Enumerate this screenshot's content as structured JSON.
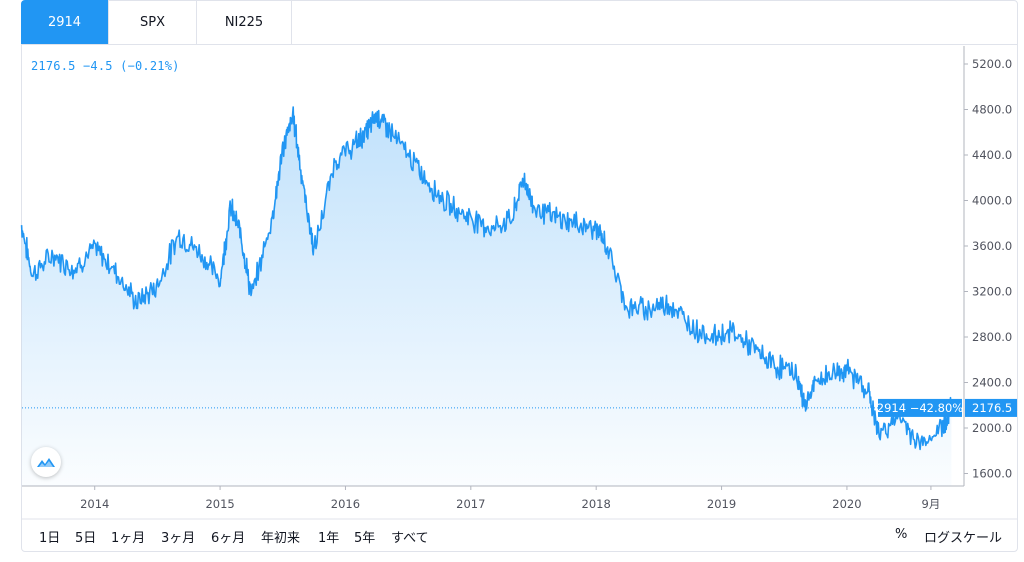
{
  "tabs": [
    {
      "label": "2914",
      "active": true
    },
    {
      "label": "SPX",
      "active": false
    },
    {
      "label": "NI225",
      "active": false
    }
  ],
  "legend": {
    "price": "2176.5",
    "change": "−4.5",
    "change_pct": "(−0.21%)"
  },
  "ranges": [
    "1日",
    "5日",
    "1ヶ月",
    "3ヶ月",
    "6ヶ月",
    "年初来",
    "1年",
    "5年",
    "すべて"
  ],
  "right_controls": {
    "percent": "%",
    "log": "ログスケール"
  },
  "price_label": {
    "series": "2914",
    "pct": "−42.80%",
    "value": "2176.5"
  },
  "colors": {
    "line": "#2196f3",
    "active_tab": "#2196f3",
    "label_bg": "#2196f3"
  },
  "logo_icon": "tradingview-cloud-icon",
  "chart_data": {
    "type": "area",
    "series_name": "2914",
    "xticks": [
      "2014",
      "2015",
      "2016",
      "2017",
      "2018",
      "2019",
      "2020",
      "9月"
    ],
    "ytick_labels": [
      "5200.0",
      "4800.0",
      "4400.0",
      "4000.0",
      "3600.0",
      "3200.0",
      "2800.0",
      "2400.0",
      "2000.0",
      "1600.0"
    ],
    "ylim": [
      1500,
      5300
    ],
    "x": [
      "2013-06",
      "2013-07",
      "2013-09",
      "2013-11",
      "2014-01",
      "2014-03",
      "2014-05",
      "2014-07",
      "2014-09",
      "2014-11",
      "2015-01",
      "2015-02",
      "2015-03",
      "2015-04",
      "2015-06",
      "2015-07",
      "2015-08",
      "2015-09",
      "2015-10",
      "2015-12",
      "2016-02",
      "2016-03",
      "2016-04",
      "2016-05",
      "2016-07",
      "2016-09",
      "2016-11",
      "2017-01",
      "2017-03",
      "2017-05",
      "2017-06",
      "2017-07",
      "2017-09",
      "2017-11",
      "2018-01",
      "2018-02",
      "2018-04",
      "2018-06",
      "2018-08",
      "2018-10",
      "2018-12",
      "2019-02",
      "2019-04",
      "2019-06",
      "2019-08",
      "2019-09",
      "2019-10",
      "2019-12",
      "2020-01",
      "2020-03",
      "2020-04",
      "2020-06",
      "2020-08",
      "2020-10",
      "2020-11"
    ],
    "values": [
      3780,
      3350,
      3520,
      3400,
      3580,
      3380,
      3100,
      3250,
      3700,
      3550,
      3300,
      3950,
      3700,
      3150,
      3850,
      4450,
      4750,
      4100,
      3550,
      4350,
      4500,
      4600,
      4750,
      4650,
      4400,
      4150,
      3950,
      3850,
      3750,
      3850,
      4200,
      3950,
      3850,
      3800,
      3750,
      3600,
      3050,
      3050,
      3100,
      2900,
      2800,
      2850,
      2700,
      2550,
      2500,
      2200,
      2400,
      2500,
      2500,
      2350,
      1950,
      2100,
      1850,
      2000,
      2176.5
    ]
  }
}
